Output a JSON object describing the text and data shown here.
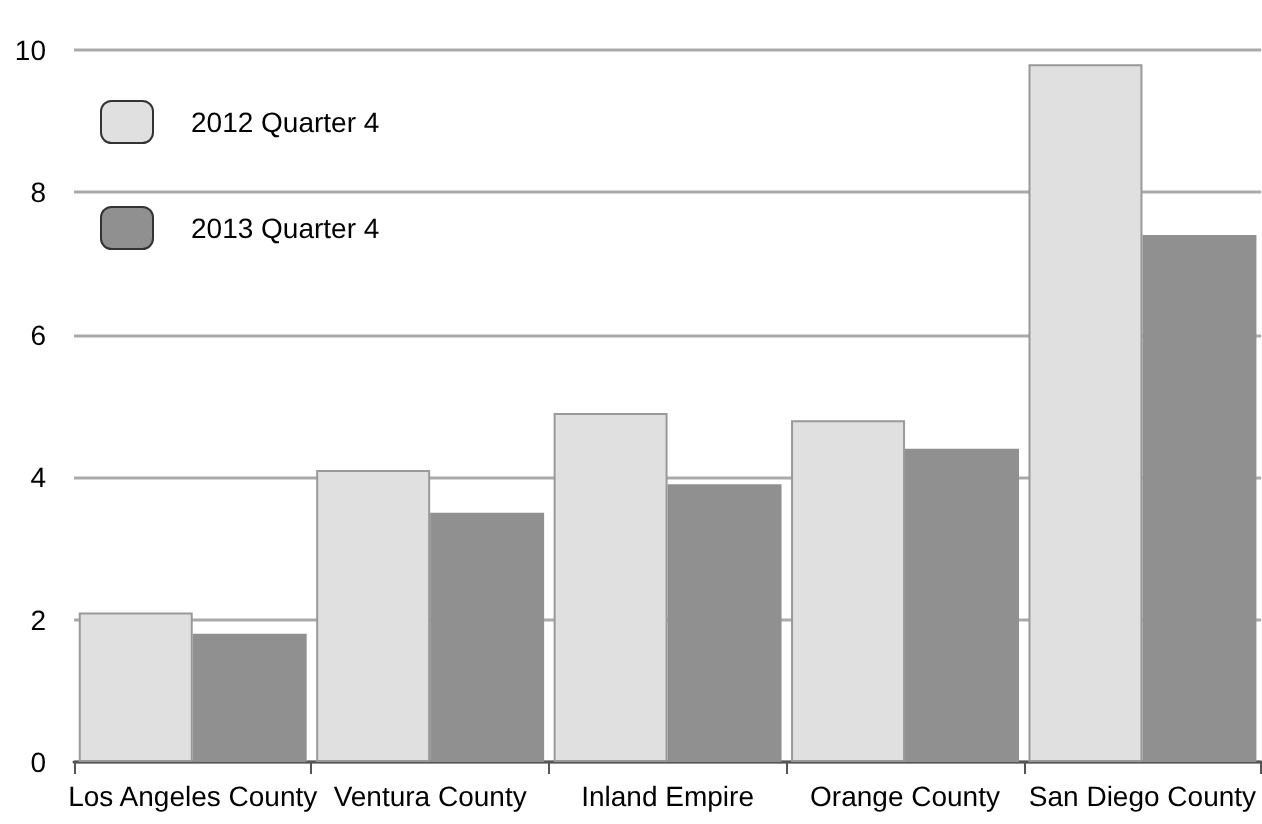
{
  "chart_data": {
    "type": "bar",
    "categories": [
      "Los Angeles County",
      "Ventura County",
      "Inland Empire",
      "Orange County",
      "San Diego County"
    ],
    "series": [
      {
        "name": "2012 Quarter 4",
        "color": "#e0e0e0",
        "values": [
          2.1,
          4.1,
          4.9,
          4.8,
          9.8
        ]
      },
      {
        "name": "2013 Quarter 4",
        "color": "#909090",
        "values": [
          1.8,
          3.5,
          3.9,
          4.4,
          7.4
        ]
      }
    ],
    "ylim": [
      0,
      10
    ],
    "yticks": [
      0,
      2,
      4,
      6,
      8,
      10
    ],
    "grid": "y",
    "legend": "top left"
  }
}
